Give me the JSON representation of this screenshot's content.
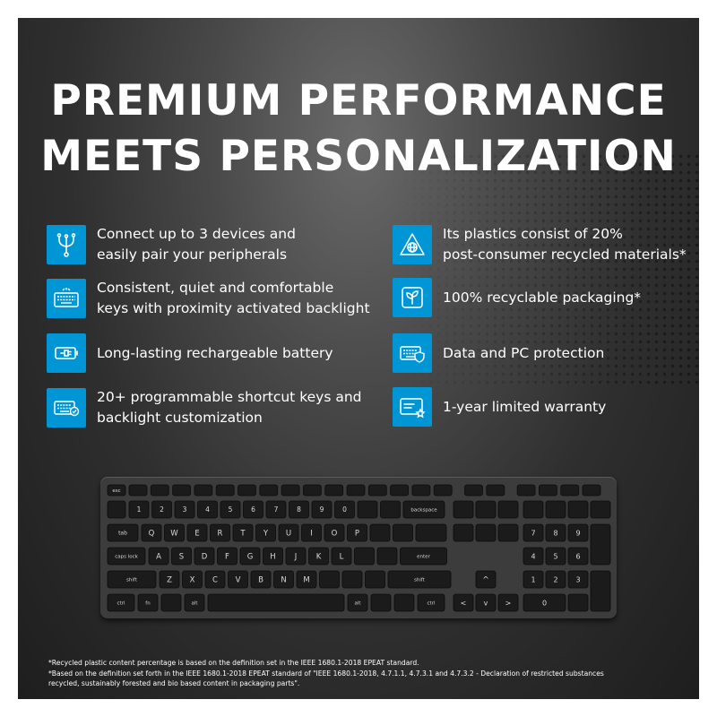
{
  "headline": {
    "line1": "PREMIUM PERFORMANCE",
    "line2": "MEETS PERSONALIZATION"
  },
  "features_left": [
    {
      "icon": "multi-device-icon",
      "line1": "Connect up to 3 devices and",
      "line2": "easily pair your peripherals"
    },
    {
      "icon": "keyboard-backlight-icon",
      "line1": "Consistent, quiet and comfortable",
      "line2": "keys with proximity activated backlight"
    },
    {
      "icon": "battery-plug-icon",
      "line1": "Long-lasting rechargeable battery",
      "line2": ""
    },
    {
      "icon": "keyboard-shortcut-icon",
      "line1": "20+ programmable shortcut keys and",
      "line2": "backlight customization"
    }
  ],
  "features_right": [
    {
      "icon": "recycle-globe-icon",
      "line1": "Its plastics consist of 20%",
      "line2": "post-consumer recycled materials*"
    },
    {
      "icon": "leaf-box-icon",
      "line1": "100% recyclable packaging*",
      "line2": ""
    },
    {
      "icon": "keyboard-shield-icon",
      "line1": "Data and PC protection",
      "line2": ""
    },
    {
      "icon": "warranty-card-icon",
      "line1": "1-year limited warranty",
      "line2": ""
    }
  ],
  "colors": {
    "icon_bg": "#0096d6",
    "text": "#ffffff",
    "key": "#1b1b1b",
    "keyboard_frame": "#3c3c3c"
  },
  "keyboard": {
    "row_letters": [
      "Q",
      "W",
      "E",
      "R",
      "T",
      "Y",
      "U",
      "I",
      "O",
      "P"
    ],
    "home_letters": [
      "A",
      "S",
      "D",
      "F",
      "G",
      "H",
      "J",
      "K",
      "L"
    ],
    "bottom_letters": [
      "Z",
      "X",
      "C",
      "V",
      "B",
      "N",
      "M"
    ],
    "numbers": [
      "1",
      "2",
      "3",
      "4",
      "5",
      "6",
      "7",
      "8",
      "9",
      "0"
    ],
    "labels": {
      "esc": "esc",
      "tab": "tab",
      "caps": "caps lock",
      "shift": "shift",
      "ctrl": "ctrl",
      "fn": "fn",
      "alt": "alt",
      "backspace": "backspace",
      "enter": "enter"
    },
    "numpad": [
      "7",
      "8",
      "9",
      "4",
      "5",
      "6",
      "1",
      "2",
      "3",
      "0"
    ]
  },
  "footnotes": {
    "line1": "*Recycled plastic content percentage is based on the definition set in the IEEE 1680.1-2018 EPEAT standard.",
    "line2": "*Based on the definition set forth in the IEEE 1680.1-2018 EPEAT standard of \"IEEE 1680.1-2018, 4.7.1.1, 4.7.3.1 and 4.7.3.2 - Declaration of restricted substances",
    "line3": "recycled, sustainably forested and bio based content in packaging parts\"."
  }
}
